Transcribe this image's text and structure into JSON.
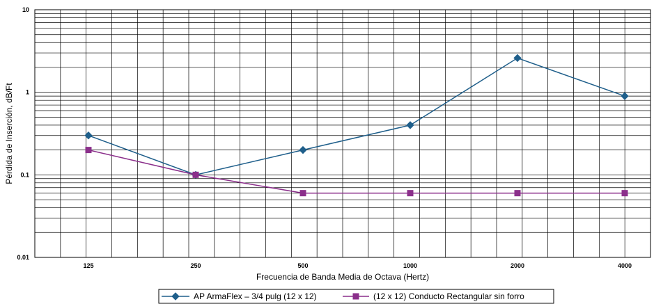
{
  "chart_data": {
    "type": "line",
    "categories": [
      "125",
      "250",
      "500",
      "1000",
      "2000",
      "4000"
    ],
    "series": [
      {
        "name": "AP ArmaFlex – 3/4 pulg (12 x 12)",
        "values": [
          0.3,
          0.1,
          0.2,
          0.4,
          2.6,
          0.9
        ],
        "color": "#1f5f8b",
        "marker": "diamond"
      },
      {
        "name": "(12 x 12) Conducto Rectangular sin forro",
        "values": [
          0.2,
          0.1,
          0.06,
          0.06,
          0.06,
          0.06
        ],
        "color": "#8b2f8b",
        "marker": "square"
      }
    ],
    "xlabel": "Frecuencia de Banda Media de Octava (Hertz)",
    "ylabel": "Pérdida de Inserción, dB/Ft",
    "y_scale": "log",
    "ylim": [
      0.01,
      10
    ],
    "y_ticks": [
      "10",
      "1",
      "0.1",
      "0.01"
    ],
    "grid": true,
    "legend_position": "bottom"
  }
}
